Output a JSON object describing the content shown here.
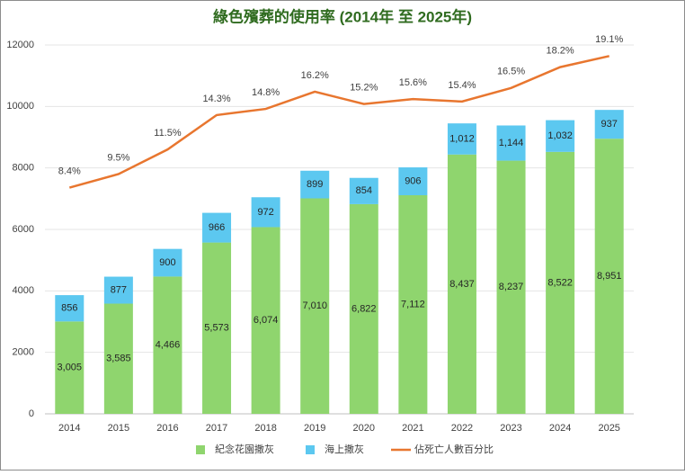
{
  "chart_data": {
    "type": "bar",
    "stacked": true,
    "title": "綠色殯葬的使用率 (2014年 至 2025年)",
    "categories": [
      "2014",
      "2015",
      "2016",
      "2017",
      "2018",
      "2019",
      "2020",
      "2021",
      "2022",
      "2023",
      "2024",
      "2025"
    ],
    "series": [
      {
        "name": "紀念花園撒灰",
        "color": "#8fd56e",
        "values": [
          3005,
          3585,
          4466,
          5573,
          6074,
          7010,
          6822,
          7112,
          8437,
          8237,
          8522,
          8951
        ],
        "value_labels": [
          "3,005",
          "3,585",
          "4,466",
          "5,573",
          "6,074",
          "7,010",
          "6,822",
          "7,112",
          "8,437",
          "8,237",
          "8,522",
          "8,951"
        ]
      },
      {
        "name": "海上撒灰",
        "color": "#5cc8f0",
        "values": [
          856,
          877,
          900,
          966,
          972,
          899,
          854,
          906,
          1012,
          1144,
          1032,
          937
        ],
        "value_labels": [
          "856",
          "877",
          "900",
          "966",
          "972",
          "899",
          "854",
          "906",
          "1,012",
          "1,144",
          "1,032",
          "937"
        ]
      },
      {
        "name": "佔死亡人數百分比",
        "type": "line",
        "axis": "y2",
        "color": "#e8762f",
        "values": [
          8.4,
          9.5,
          11.5,
          14.3,
          14.8,
          16.2,
          15.2,
          15.6,
          15.4,
          16.5,
          18.2,
          19.1
        ],
        "value_labels": [
          "8.4%",
          "9.5%",
          "11.5%",
          "14.3%",
          "14.8%",
          "16.2%",
          "15.2%",
          "15.6%",
          "15.4%",
          "16.5%",
          "18.2%",
          "19.1%"
        ]
      }
    ],
    "ylim": [
      0,
      12000
    ],
    "yticks": [
      0,
      2000,
      4000,
      6000,
      8000,
      10000,
      12000
    ],
    "y2lim": [
      -10,
      20
    ],
    "grid": true,
    "legend": "bottom"
  }
}
